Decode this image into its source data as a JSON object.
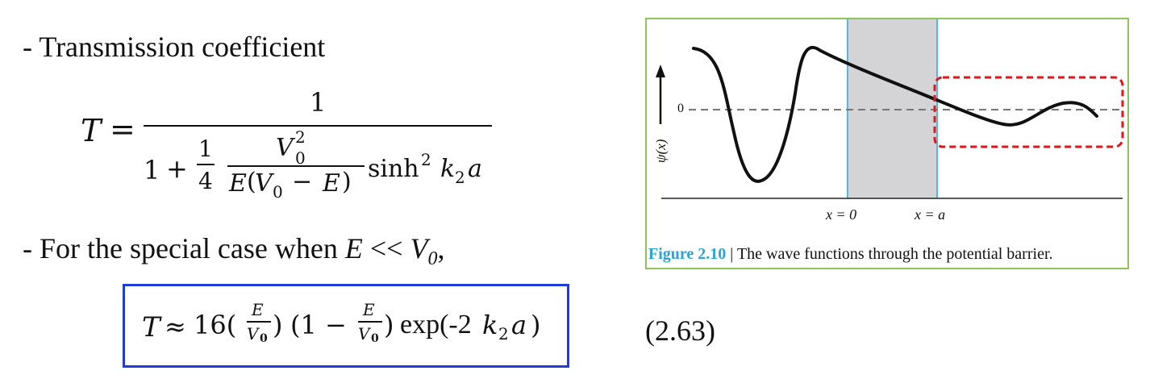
{
  "heading_transmission": "- Transmission coefficient",
  "eq_T": {
    "lhs": "T",
    "equals": "=",
    "numerator": "1",
    "one": "1",
    "plus": "+",
    "quarter_num": "1",
    "quarter_den": "4",
    "v0_sq": "V",
    "v0_sub": "0",
    "v0_sup": "2",
    "denom_E": "E",
    "denom_paren_open": "(",
    "denom_V": "V",
    "denom_V_sub": "0",
    "denom_minus": "−",
    "denom_E2": "E",
    "denom_paren_close": ")",
    "sinh": "sinh",
    "sinh_sup": "2",
    "k": "k",
    "k_sub": "2",
    "a": "a"
  },
  "special_case": {
    "prefix": "- For the special case when ",
    "E": "E",
    "ll": " << ",
    "V": "V",
    "V_sub": "0",
    "suffix": ","
  },
  "approx": {
    "T": "T",
    "approx": "≈",
    "sixteen": "16(",
    "frac_num": "E",
    "frac_den_V": "V",
    "frac_den_sub": "0",
    "close1": ")",
    "open2": "(1 −",
    "frac2_num": "E",
    "frac2_den_V": "V",
    "frac2_den_sub": "0",
    "close2": ")",
    "exp": "exp(-2",
    "k": "k",
    "k_sub": "2",
    "a": "a",
    "close3": ")"
  },
  "eq_number": "(2.63)",
  "figure": {
    "y_axis_label": "ψ(x)",
    "zero_label": "0",
    "x0_label": "x = 0",
    "xa_label": "x = a",
    "caption_label": "Figure 2.10",
    "caption_sep": " | ",
    "caption_text": "The wave functions through the potential barrier.",
    "colors": {
      "barrier_fill": "#d4d4d6",
      "barrier_edge": "#4fb8e8",
      "highlight_box": "#e0161b",
      "frame": "#8fc45a",
      "caption_label": "#29a3d8"
    }
  }
}
